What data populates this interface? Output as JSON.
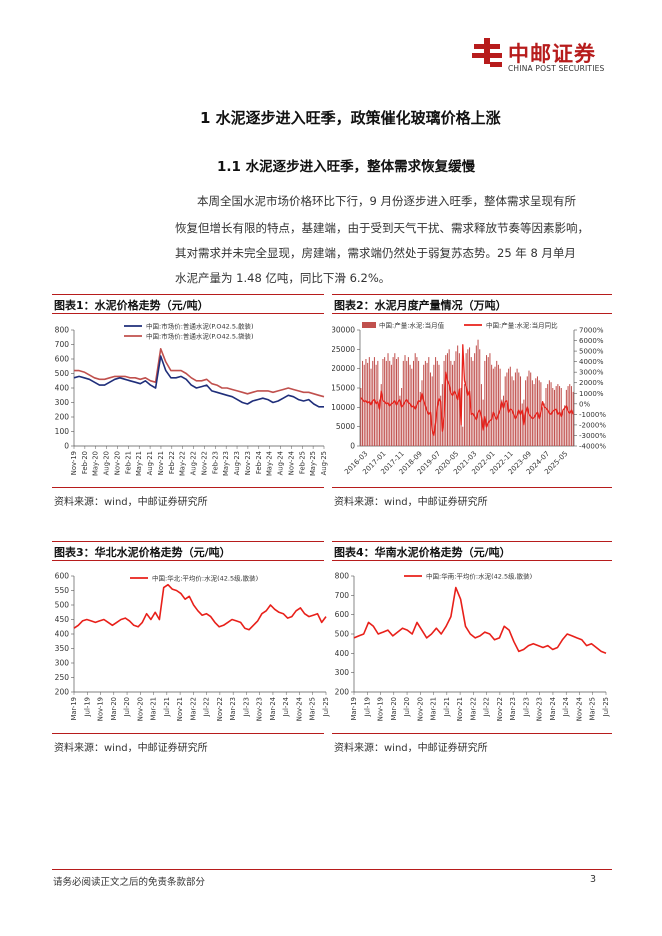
{
  "header": {
    "logo_cn": "中邮证券",
    "logo_en": "CHINA POST SECURITIES"
  },
  "section": {
    "heading1": "1 水泥逐步进入旺季，政策催化玻璃价格上涨",
    "heading2": "1.1 水泥逐步进入旺季，整体需求恢复缓慢",
    "paragraph_lines": [
      "本周全国水泥市场价格环比下行，9 月份逐步进入旺季，整体需求呈现有所",
      "恢复但增长有限的特点，基建端，由于受到天气干扰、需求释放节奏等因素影响，",
      "其对需求并未完全显现，房建端，需求端仍然处于弱复苏态势。25 年 8 月单月",
      "水泥产量为 1.48 亿吨，同比下滑 6.2%。"
    ]
  },
  "figures": [
    {
      "title": "图表1：水泥价格走势（元/吨）",
      "source": "资料来源：wind，中邮证券研究所"
    },
    {
      "title": "图表2：水泥月度产量情况（万吨）",
      "source": "资料来源：wind，中邮证券研究所"
    },
    {
      "title": "图表3：华北水泥价格走势（元/吨）",
      "source": "资料来源：wind，中邮证券研究所"
    },
    {
      "title": "图表4：华南水泥价格走势（元/吨）",
      "source": "资料来源：wind，中邮证券研究所"
    }
  ],
  "colors": {
    "brand_red": "#b71c1c",
    "series_navy": "#1f2e7a",
    "series_red": "#c0504d",
    "bright_red": "#e8201a"
  },
  "chart_data": [
    {
      "type": "line",
      "ylim": [
        0,
        800
      ],
      "yticks": [
        0,
        100,
        200,
        300,
        400,
        500,
        600,
        700,
        800
      ],
      "x_tick_labels": [
        "Nov-19",
        "Feb-20",
        "May-20",
        "Aug-20",
        "Nov-20",
        "Feb-21",
        "May-21",
        "Aug-21",
        "Nov-21",
        "Feb-22",
        "May-22",
        "Aug-22",
        "Nov-22",
        "Feb-23",
        "May-23",
        "Aug-23",
        "Nov-23",
        "Feb-24",
        "May-24",
        "Aug-24",
        "Nov-24",
        "Feb-25",
        "May-25",
        "Aug-25"
      ],
      "series": [
        {
          "name": "中国:市场价:普通水泥(P.O42.5,散装)",
          "color": "#1f2e7a",
          "values": [
            470,
            480,
            470,
            460,
            440,
            420,
            420,
            440,
            460,
            470,
            460,
            450,
            440,
            430,
            450,
            420,
            400,
            620,
            520,
            470,
            470,
            480,
            460,
            420,
            400,
            410,
            420,
            380,
            370,
            360,
            350,
            340,
            320,
            300,
            290,
            310,
            320,
            330,
            320,
            300,
            310,
            330,
            350,
            340,
            320,
            310,
            320,
            290,
            270,
            270
          ]
        },
        {
          "name": "中国:市场价:普通水泥(P.O42.5,袋装)",
          "color": "#c0504d",
          "values": [
            520,
            520,
            510,
            490,
            470,
            460,
            460,
            470,
            480,
            480,
            480,
            470,
            470,
            460,
            470,
            450,
            440,
            670,
            580,
            520,
            520,
            520,
            500,
            470,
            450,
            450,
            460,
            430,
            420,
            400,
            400,
            390,
            380,
            370,
            360,
            370,
            380,
            380,
            380,
            370,
            380,
            390,
            400,
            390,
            380,
            370,
            370,
            360,
            350,
            340
          ]
        }
      ]
    },
    {
      "type": "bar",
      "ylim": [
        0,
        30000
      ],
      "yticks": [
        0,
        5000,
        10000,
        15000,
        20000,
        25000,
        30000
      ],
      "y2lim": [
        -4000,
        7000
      ],
      "y2ticks": [
        "-4000%",
        "-3000%",
        "-2000%",
        "-1000%",
        "0%",
        "1000%",
        "2000%",
        "3000%",
        "4000%",
        "5000%",
        "6000%",
        "7000%"
      ],
      "x_tick_labels": [
        "2016-03",
        "2017-01",
        "2017-11",
        "2018-09",
        "2019-07",
        "2020-05",
        "2021-03",
        "2022-01",
        "2022-11",
        "2023-09",
        "2024-07",
        "2025-05"
      ],
      "series": [
        {
          "name": "中国:产量:水泥:当月值",
          "color": "#c0504d",
          "values": [
            15000,
            22000,
            21000,
            22500,
            21500,
            23000,
            20000,
            22000,
            23000,
            21000,
            22000,
            12000,
            16000,
            22500,
            23000,
            22000,
            24000,
            22000,
            21000,
            23000,
            24000,
            22500,
            23000,
            13000,
            15000,
            22000,
            23500,
            22000,
            23000,
            21000,
            20000,
            22000,
            24000,
            23000,
            22000,
            14000,
            17000,
            21000,
            22000,
            21500,
            23000,
            19000,
            18000,
            21000,
            23000,
            22000,
            21000,
            13000,
            16000,
            22000,
            23500,
            24000,
            25000,
            22000,
            21000,
            22000,
            24500,
            26000,
            24000,
            15000,
            5000,
            16000,
            24000,
            25000,
            25500,
            23000,
            22000,
            24000,
            26000,
            27500,
            25000,
            16000,
            12000,
            22000,
            23500,
            23000,
            24000,
            21000,
            20000,
            20500,
            22000,
            21000,
            20000,
            12000,
            13000,
            18000,
            19000,
            20000,
            20500,
            18000,
            17000,
            19000,
            20000,
            19000,
            18000,
            11000,
            12000,
            17000,
            18000,
            19500,
            19000,
            17000,
            16000,
            17500,
            18000,
            17000,
            16500,
            10000,
            11000,
            15000,
            16000,
            17000,
            16500,
            15000,
            14500,
            15500,
            16000,
            15500,
            15000,
            9500,
            10500,
            14500,
            15500,
            16000,
            15500,
            14000
          ]
        },
        {
          "name": "中国:产量:水泥:当月同比",
          "color": "#e8201a",
          "values": [
            600,
            400,
            200,
            300,
            100,
            200,
            -100,
            300,
            400,
            0,
            200,
            -500,
            1200,
            300,
            200,
            0,
            100,
            -200,
            0,
            100,
            300,
            -100,
            200,
            400,
            -300,
            -100,
            200,
            400,
            100,
            0,
            -300,
            -200,
            -500,
            -100,
            300,
            200,
            1000,
            300,
            -200,
            -700,
            -1000,
            -800,
            -2500,
            -3000,
            -1800,
            -300,
            500,
            200,
            -2600,
            -1200,
            3000,
            2200,
            1800,
            1000,
            800,
            1200,
            900,
            400,
            1400,
            -2000,
            5600,
            2200,
            1600,
            800,
            1200,
            -1000,
            -900,
            -1200,
            -1500,
            -800,
            -600,
            -1200,
            -2500,
            -1200,
            -2200,
            -1800,
            -1600,
            -1500,
            -800,
            -1200,
            -1500,
            -1000,
            -600,
            200,
            -400,
            200,
            300,
            -800,
            -500,
            -600,
            -1000,
            -1400,
            -1100,
            -600,
            -1000,
            -600,
            -2000,
            -800,
            -300,
            -1000,
            -1200,
            -1400,
            -1300,
            -1000,
            -800,
            -1400,
            -800,
            200,
            -300,
            -400,
            -600,
            -900,
            -1000,
            -700,
            -600,
            -500,
            -1000,
            -800,
            -1200,
            -600,
            -400,
            -200,
            -700,
            -900,
            -600,
            -1000
          ]
        }
      ]
    },
    {
      "type": "line",
      "ylim": [
        200,
        600
      ],
      "yticks": [
        200,
        250,
        300,
        350,
        400,
        450,
        500,
        550,
        600
      ],
      "x_tick_labels": [
        "Mar-19",
        "Jul-19",
        "Nov-19",
        "Mar-20",
        "Jul-20",
        "Nov-20",
        "Mar-21",
        "Jul-21",
        "Nov-21",
        "Mar-22",
        "Jul-22",
        "Nov-22",
        "Mar-23",
        "Jul-23",
        "Nov-23",
        "Mar-24",
        "Jul-24",
        "Nov-24",
        "Mar-25",
        "Jul-25"
      ],
      "series": [
        {
          "name": "中国:华北:平均价:水泥(42.5级,散装)",
          "color": "#e8201a",
          "values": [
            420,
            430,
            445,
            450,
            445,
            440,
            445,
            450,
            440,
            430,
            440,
            450,
            455,
            445,
            430,
            425,
            440,
            470,
            450,
            475,
            450,
            560,
            570,
            555,
            550,
            540,
            520,
            530,
            500,
            480,
            465,
            470,
            460,
            440,
            425,
            430,
            440,
            450,
            445,
            440,
            420,
            415,
            430,
            445,
            470,
            480,
            500,
            485,
            475,
            470,
            455,
            460,
            480,
            490,
            470,
            460,
            465,
            470,
            440,
            460
          ]
        }
      ]
    },
    {
      "type": "line",
      "ylim": [
        200,
        800
      ],
      "yticks": [
        200,
        300,
        400,
        500,
        600,
        700,
        800
      ],
      "x_tick_labels": [
        "Mar-19",
        "Jul-19",
        "Nov-19",
        "Mar-20",
        "Jul-20",
        "Nov-20",
        "Mar-21",
        "Jul-21",
        "Nov-21",
        "Mar-22",
        "Jul-22",
        "Nov-22",
        "Mar-23",
        "Jul-23",
        "Nov-23",
        "Mar-24",
        "Jul-24",
        "Nov-24",
        "Mar-25",
        "Jul-25"
      ],
      "series": [
        {
          "name": "中国:华南:平均价:水泥(42.5级,散装)",
          "color": "#e8201a",
          "values": [
            480,
            490,
            500,
            560,
            540,
            500,
            510,
            520,
            490,
            510,
            530,
            520,
            500,
            560,
            520,
            480,
            500,
            530,
            500,
            540,
            590,
            740,
            680,
            540,
            500,
            480,
            490,
            510,
            500,
            470,
            480,
            540,
            520,
            460,
            410,
            420,
            440,
            450,
            440,
            430,
            440,
            420,
            430,
            470,
            500,
            490,
            480,
            470,
            440,
            450,
            430,
            410,
            400
          ]
        }
      ]
    }
  ]
}
